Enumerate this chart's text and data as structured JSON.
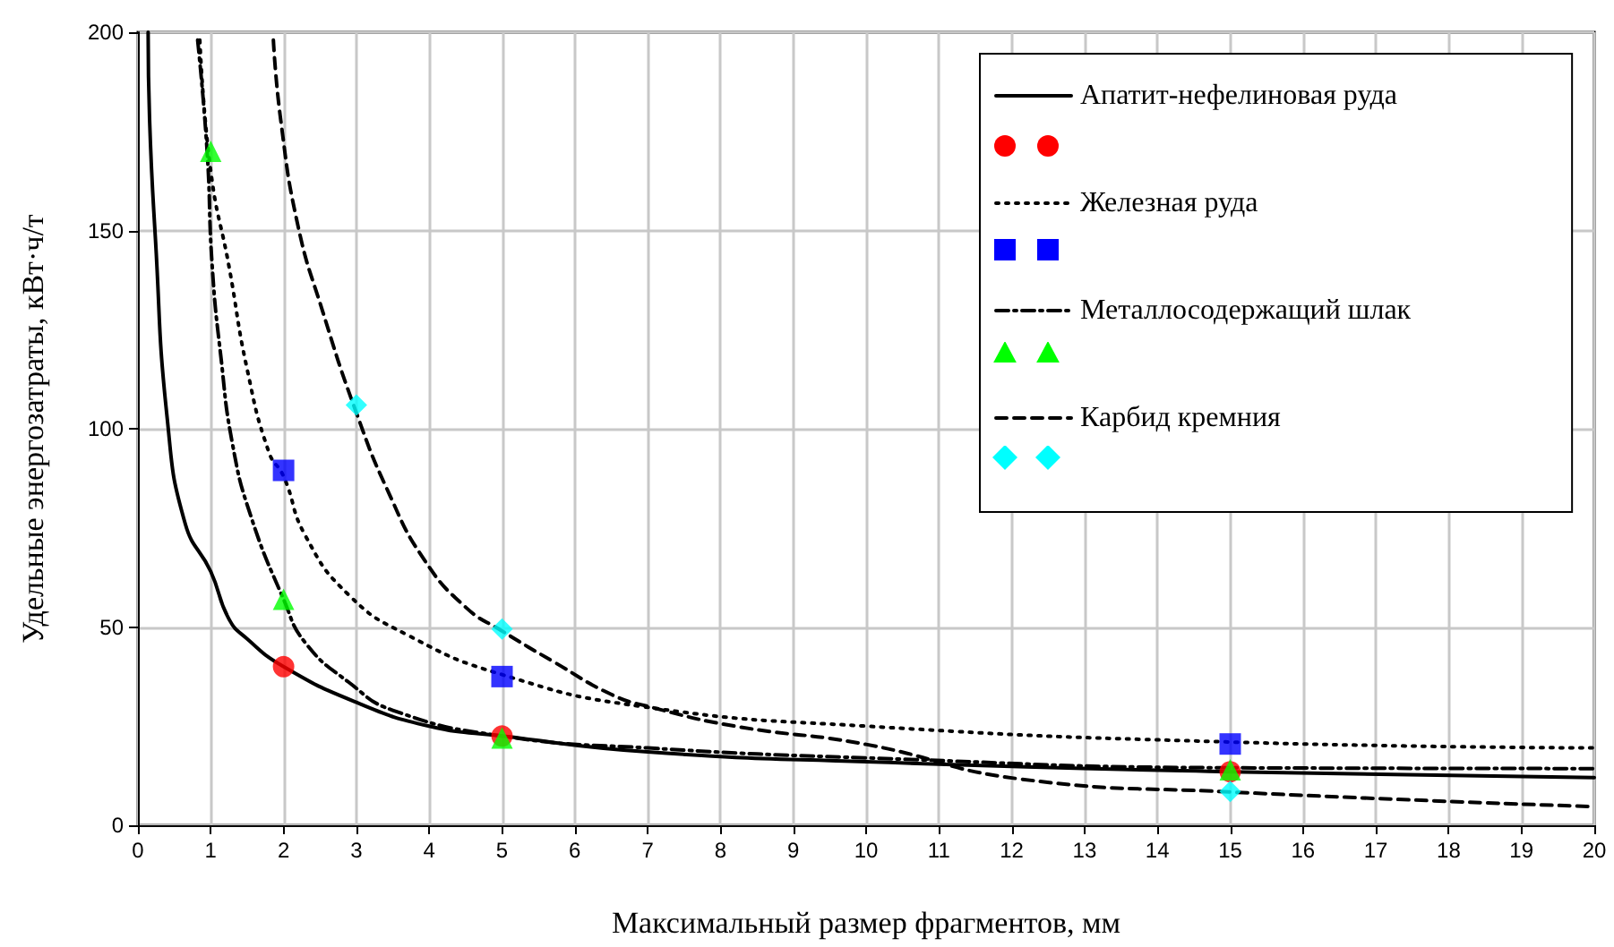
{
  "chart_data": {
    "type": "line",
    "xlabel": "Максимальный размер фрагментов, мм",
    "ylabel": "Удельные энергозатраты, кВт·ч/т",
    "xlim": [
      0,
      20
    ],
    "xticks": [
      0,
      1,
      2,
      3,
      4,
      5,
      6,
      7,
      8,
      9,
      10,
      11,
      12,
      13,
      14,
      15,
      16,
      17,
      18,
      19,
      20
    ],
    "ylim": [
      0,
      200
    ],
    "yticks": [
      0,
      50,
      100,
      150,
      200
    ],
    "grid": true,
    "legend": "top right",
    "series": [
      {
        "name": "Апатит-нефелиновая руда",
        "color": "#000000",
        "line_style": "solid",
        "marker": "none",
        "x": [
          0.14,
          0.16,
          0.24,
          0.4,
          0.65,
          1,
          1.25,
          1.5,
          2,
          3,
          4,
          5,
          7,
          10,
          15,
          20
        ],
        "values": [
          200,
          178,
          148,
          103,
          76,
          64,
          52,
          47,
          40,
          31,
          25,
          22.5,
          18.5,
          16,
          13.5,
          12
        ]
      },
      {
        "type": "scatter",
        "color": "#ff0000",
        "marker": "circle",
        "x": [
          2,
          5,
          15
        ],
        "values": [
          40,
          22.5,
          13.5
        ]
      },
      {
        "name": "Железная руда",
        "color": "#000000",
        "line_style": "dotted",
        "marker": "none",
        "x": [
          0.85,
          1,
          1.25,
          1.5,
          1.8,
          2,
          2.3,
          2.9,
          3.7,
          5,
          6.9,
          10,
          15,
          20
        ],
        "values": [
          198,
          165,
          141,
          115,
          94,
          88,
          73,
          58,
          48,
          38,
          30,
          25,
          21,
          19.5
        ]
      },
      {
        "type": "scatter",
        "color": "#0000ff",
        "marker": "square",
        "x": [
          2,
          5,
          15
        ],
        "values": [
          89.5,
          37.5,
          20.5
        ]
      },
      {
        "name": "Металлосодержащий шлак",
        "color": "#000000",
        "line_style": "dashdot",
        "marker": "none",
        "x": [
          0.82,
          0.95,
          1.02,
          1.14,
          1.3,
          1.55,
          2,
          2.3,
          2.9,
          3.5,
          5,
          7,
          10,
          15,
          20
        ],
        "values": [
          198,
          170,
          141,
          118,
          96,
          78,
          57,
          46,
          36,
          29,
          22.5,
          19.5,
          17,
          14.5,
          14.3
        ]
      },
      {
        "type": "scatter",
        "color": "#00ff00",
        "marker": "triangle",
        "x": [
          1,
          2,
          5,
          15
        ],
        "values": [
          170,
          57,
          22,
          14
        ]
      },
      {
        "name": "Карбид кремния",
        "color": "#000000",
        "line_style": "dashed",
        "marker": "none",
        "x": [
          1.86,
          1.96,
          2.2,
          2.53,
          3,
          3.44,
          3.93,
          4.5,
          5,
          5.73,
          6.5,
          7,
          8.2,
          10,
          12.1,
          15,
          20
        ],
        "values": [
          198,
          178,
          151,
          130,
          104,
          84,
          67,
          55,
          49,
          41,
          33,
          30,
          25,
          20.4,
          11.7,
          8.4,
          4.7
        ]
      },
      {
        "type": "scatter",
        "color": "#00ffff",
        "marker": "diamond",
        "x": [
          3,
          5,
          15
        ],
        "values": [
          106,
          49.5,
          8.5
        ]
      }
    ]
  }
}
